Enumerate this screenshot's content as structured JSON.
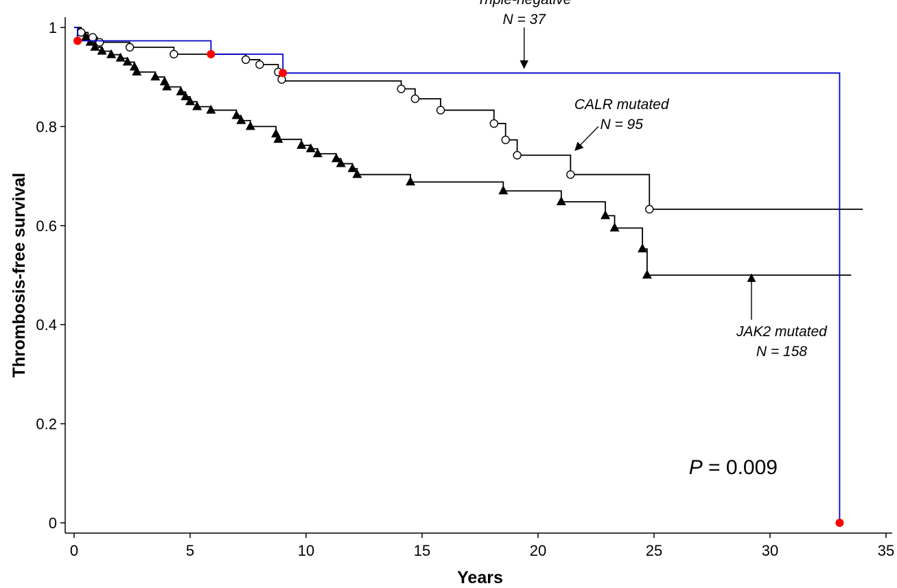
{
  "chart_data": {
    "type": "line",
    "title": "",
    "xlabel": "Years",
    "ylabel": "Thrombosis-free survival",
    "xlim": [
      0,
      35
    ],
    "ylim": [
      0,
      1
    ],
    "x_ticks": [
      0,
      5,
      10,
      15,
      20,
      25,
      30,
      35
    ],
    "y_ticks": [
      0,
      0.2,
      0.4,
      0.6,
      0.8,
      1
    ],
    "y_tick_labels": [
      "0",
      "0.2",
      "0.4",
      "0.6",
      "0.8",
      "1"
    ],
    "grid": false,
    "legend": "none",
    "series": [
      {
        "key": "triple",
        "name": "Triple-negative",
        "color": "#0000cc",
        "steps": [
          [
            0,
            1
          ],
          [
            0.15,
            0.973
          ],
          [
            5.9,
            0.946
          ],
          [
            9.0,
            0.908
          ],
          [
            33.0,
            0
          ]
        ],
        "end_x": 33.0,
        "events": [
          [
            0.15,
            0.973
          ],
          [
            5.9,
            0.946
          ],
          [
            9.0,
            0.908
          ],
          [
            33.0,
            0
          ]
        ],
        "event_marker": "red-dot"
      },
      {
        "key": "calr",
        "name": "CALR mutated",
        "color": "#000000",
        "steps": [
          [
            0,
            1
          ],
          [
            0.2,
            0.99
          ],
          [
            0.6,
            0.98
          ],
          [
            1.0,
            0.97
          ],
          [
            2.4,
            0.96
          ],
          [
            4.3,
            0.946
          ],
          [
            7.4,
            0.935
          ],
          [
            8.0,
            0.925
          ],
          [
            8.8,
            0.91
          ],
          [
            8.95,
            0.892
          ],
          [
            14.1,
            0.876
          ],
          [
            14.7,
            0.856
          ],
          [
            15.8,
            0.833
          ],
          [
            18.1,
            0.806
          ],
          [
            18.6,
            0.773
          ],
          [
            19.1,
            0.742
          ],
          [
            21.4,
            0.703
          ],
          [
            24.8,
            0.633
          ]
        ],
        "end_x": 34.0,
        "markers": [
          [
            0.3,
            0.99
          ],
          [
            0.8,
            0.98
          ],
          [
            1.1,
            0.97
          ],
          [
            2.4,
            0.96
          ],
          [
            4.3,
            0.946
          ],
          [
            7.4,
            0.935
          ],
          [
            8.0,
            0.925
          ],
          [
            8.8,
            0.91
          ],
          [
            8.95,
            0.895
          ],
          [
            14.1,
            0.876
          ],
          [
            14.7,
            0.856
          ],
          [
            15.8,
            0.833
          ],
          [
            18.1,
            0.806
          ],
          [
            18.6,
            0.773
          ],
          [
            19.1,
            0.742
          ],
          [
            21.4,
            0.703
          ],
          [
            24.8,
            0.633
          ]
        ],
        "marker": "open-circle"
      },
      {
        "key": "jak2",
        "name": "JAK2 mutated",
        "color": "#000000",
        "steps": [
          [
            0,
            1
          ],
          [
            0.3,
            0.99
          ],
          [
            0.5,
            0.98
          ],
          [
            0.7,
            0.97
          ],
          [
            0.9,
            0.96
          ],
          [
            1.2,
            0.952
          ],
          [
            1.6,
            0.945
          ],
          [
            2.0,
            0.938
          ],
          [
            2.3,
            0.93
          ],
          [
            2.6,
            0.92
          ],
          [
            2.7,
            0.91
          ],
          [
            3.5,
            0.9
          ],
          [
            3.9,
            0.89
          ],
          [
            4.0,
            0.88
          ],
          [
            4.6,
            0.87
          ],
          [
            4.8,
            0.86
          ],
          [
            5.0,
            0.85
          ],
          [
            5.3,
            0.84
          ],
          [
            5.9,
            0.833
          ],
          [
            7.0,
            0.822
          ],
          [
            7.2,
            0.812
          ],
          [
            7.6,
            0.8
          ],
          [
            8.7,
            0.785
          ],
          [
            8.8,
            0.774
          ],
          [
            9.8,
            0.762
          ],
          [
            10.2,
            0.755
          ],
          [
            10.5,
            0.745
          ],
          [
            11.3,
            0.735
          ],
          [
            11.5,
            0.725
          ],
          [
            12.0,
            0.715
          ],
          [
            12.2,
            0.703
          ],
          [
            14.5,
            0.688
          ],
          [
            18.5,
            0.67
          ],
          [
            21.0,
            0.648
          ],
          [
            22.9,
            0.62
          ],
          [
            23.3,
            0.595
          ],
          [
            24.5,
            0.553
          ],
          [
            24.7,
            0.5
          ]
        ],
        "end_x": 33.5,
        "markers": [
          [
            0.3,
            0.99
          ],
          [
            0.5,
            0.98
          ],
          [
            0.7,
            0.97
          ],
          [
            0.9,
            0.96
          ],
          [
            1.2,
            0.952
          ],
          [
            1.6,
            0.945
          ],
          [
            2.0,
            0.938
          ],
          [
            2.3,
            0.93
          ],
          [
            2.6,
            0.92
          ],
          [
            2.7,
            0.91
          ],
          [
            3.5,
            0.9
          ],
          [
            3.9,
            0.89
          ],
          [
            4.0,
            0.88
          ],
          [
            4.6,
            0.87
          ],
          [
            4.8,
            0.86
          ],
          [
            5.0,
            0.85
          ],
          [
            5.3,
            0.84
          ],
          [
            5.9,
            0.833
          ],
          [
            7.0,
            0.822
          ],
          [
            7.2,
            0.812
          ],
          [
            7.6,
            0.8
          ],
          [
            8.7,
            0.785
          ],
          [
            8.8,
            0.774
          ],
          [
            9.8,
            0.762
          ],
          [
            10.2,
            0.755
          ],
          [
            10.5,
            0.745
          ],
          [
            11.3,
            0.735
          ],
          [
            11.5,
            0.725
          ],
          [
            12.0,
            0.715
          ],
          [
            12.2,
            0.703
          ],
          [
            14.5,
            0.688
          ],
          [
            18.5,
            0.67
          ],
          [
            21.0,
            0.648
          ],
          [
            22.9,
            0.62
          ],
          [
            23.3,
            0.595
          ],
          [
            24.5,
            0.553
          ],
          [
            24.7,
            0.5
          ]
        ],
        "marker": "filled-triangle"
      }
    ],
    "annotations": [
      {
        "key": "triple",
        "lines": [
          "Triple-negative",
          "N = 37"
        ],
        "text_at": [
          19.4,
          1.047
        ],
        "arrow_from": [
          19.4,
          1.0
        ],
        "arrow_to": [
          19.4,
          0.918
        ]
      },
      {
        "key": "calr",
        "lines": [
          "CALR mutated",
          "N = 95"
        ],
        "text_at": [
          23.6,
          0.835
        ],
        "arrow_from": [
          22.6,
          0.8
        ],
        "arrow_to": [
          21.6,
          0.752
        ]
      },
      {
        "key": "jak2",
        "lines": [
          "JAK2 mutated",
          "N = 158"
        ],
        "text_at": [
          30.5,
          0.377
        ],
        "arrow_from": [
          29.2,
          0.41
        ],
        "arrow_to": [
          29.2,
          0.502
        ]
      }
    ],
    "p_value": {
      "label": "P",
      "value": " = 0.009",
      "at": [
        26.5,
        0.098
      ]
    }
  }
}
